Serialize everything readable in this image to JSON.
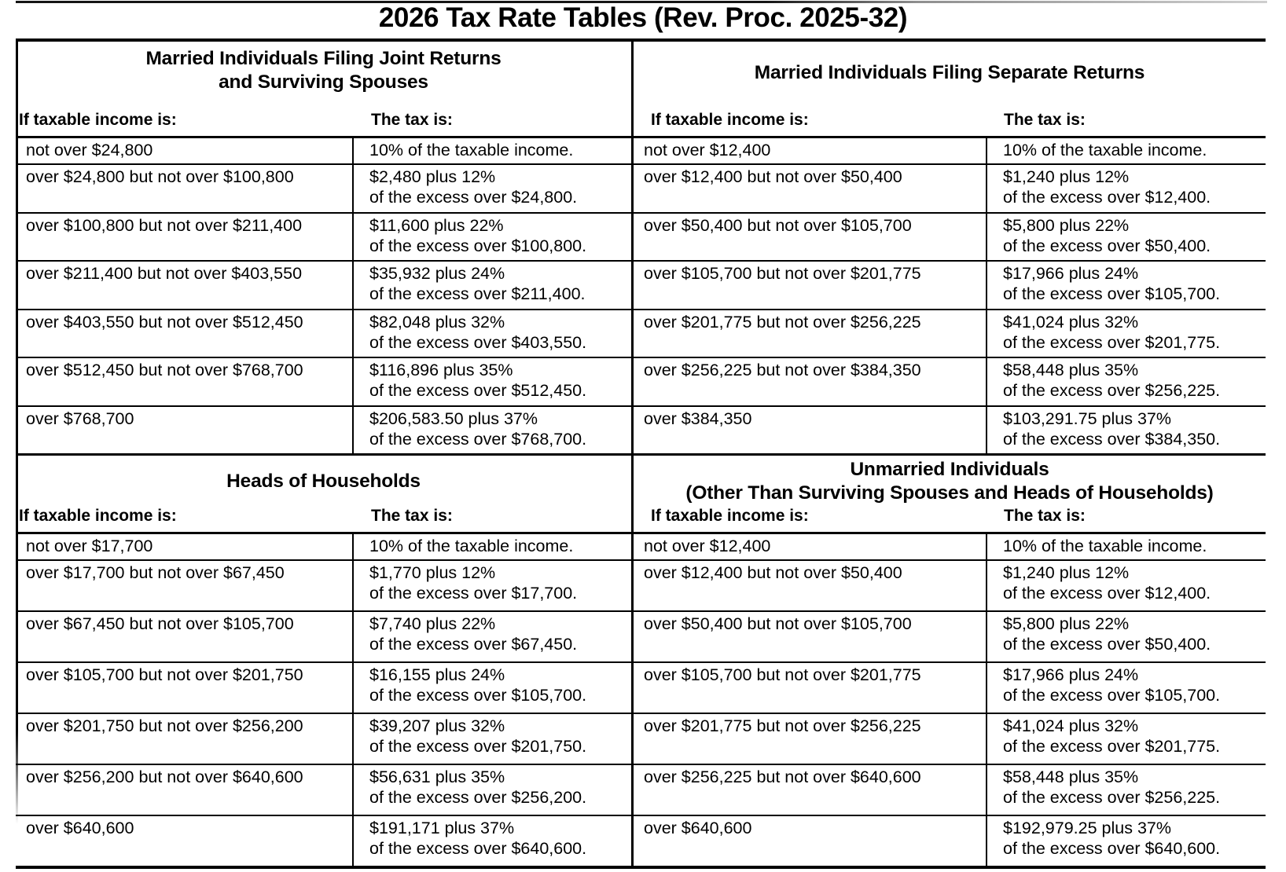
{
  "title": "2026 Tax Rate Tables (Rev. Proc. 2025-32)",
  "column_headers": {
    "income": "If taxable income is:",
    "tax": "The tax is:"
  },
  "tables": [
    {
      "id": "married-filing-jointly",
      "title_line1": "Married Individuals Filing Joint Returns",
      "title_line2": "and Surviving Spouses",
      "rows": [
        {
          "income": "not over $24,800",
          "tax_line1": "10% of the taxable income.",
          "tax_line2": ""
        },
        {
          "income": "over $24,800 but not over $100,800",
          "tax_line1": "$2,480 plus 12%",
          "tax_line2": "of the excess over $24,800."
        },
        {
          "income": "over $100,800 but not over $211,400",
          "tax_line1": "$11,600 plus 22%",
          "tax_line2": "of the excess over $100,800."
        },
        {
          "income": "over $211,400 but not over $403,550",
          "tax_line1": "$35,932 plus 24%",
          "tax_line2": "of the excess over $211,400."
        },
        {
          "income": "over $403,550 but not over $512,450",
          "tax_line1": "$82,048 plus 32%",
          "tax_line2": "of the excess over $403,550."
        },
        {
          "income": "over $512,450 but not over $768,700",
          "tax_line1": "$116,896 plus 35%",
          "tax_line2": "of the excess over $512,450."
        },
        {
          "income": "over $768,700",
          "tax_line1": "$206,583.50 plus 37%",
          "tax_line2": "of the excess over $768,700."
        }
      ]
    },
    {
      "id": "married-filing-separately",
      "title_line1": "Married Individuals Filing Separate Returns",
      "title_line2": "",
      "rows": [
        {
          "income": "not over $12,400",
          "tax_line1": "10% of the taxable income.",
          "tax_line2": ""
        },
        {
          "income": "over $12,400 but not over $50,400",
          "tax_line1": "$1,240 plus 12%",
          "tax_line2": "of the excess over $12,400."
        },
        {
          "income": "over $50,400 but not over $105,700",
          "tax_line1": "$5,800 plus 22%",
          "tax_line2": "of the excess over $50,400."
        },
        {
          "income": "over $105,700 but not over $201,775",
          "tax_line1": "$17,966 plus 24%",
          "tax_line2": "of the excess over $105,700."
        },
        {
          "income": "over $201,775 but not over $256,225",
          "tax_line1": "$41,024 plus 32%",
          "tax_line2": "of the excess over $201,775."
        },
        {
          "income": "over $256,225 but not over $384,350",
          "tax_line1": "$58,448 plus 35%",
          "tax_line2": "of the excess over $256,225."
        },
        {
          "income": "over $384,350",
          "tax_line1": "$103,291.75 plus 37%",
          "tax_line2": "of the excess over $384,350."
        }
      ]
    },
    {
      "id": "heads-of-households",
      "title_line1": "Heads of Households",
      "title_line2": "",
      "rows": [
        {
          "income": "not over $17,700",
          "tax_line1": "10% of the taxable income.",
          "tax_line2": ""
        },
        {
          "income": "over $17,700 but not over $67,450",
          "tax_line1": "$1,770 plus 12%",
          "tax_line2": "of the excess over $17,700."
        },
        {
          "income": "over $67,450 but not over $105,700",
          "tax_line1": "$7,740 plus 22%",
          "tax_line2": "of the excess over $67,450."
        },
        {
          "income": "over $105,700 but not over $201,750",
          "tax_line1": "$16,155 plus 24%",
          "tax_line2": "of the excess over $105,700."
        },
        {
          "income": "over $201,750 but not over $256,200",
          "tax_line1": "$39,207 plus 32%",
          "tax_line2": "of the excess over $201,750."
        },
        {
          "income": "over $256,200 but not over $640,600",
          "tax_line1": "$56,631 plus 35%",
          "tax_line2": "of the excess over $256,200."
        },
        {
          "income": "over $640,600",
          "tax_line1": "$191,171 plus 37%",
          "tax_line2": "of the excess over $640,600."
        }
      ]
    },
    {
      "id": "unmarried-individuals",
      "title_line1": "Unmarried Individuals",
      "title_line2": "(Other Than Surviving Spouses and Heads of Households)",
      "rows": [
        {
          "income": "not over $12,400",
          "tax_line1": "10% of the taxable income.",
          "tax_line2": ""
        },
        {
          "income": "over $12,400 but not over $50,400",
          "tax_line1": "$1,240 plus 12%",
          "tax_line2": "of the excess over $12,400."
        },
        {
          "income": "over $50,400 but not over $105,700",
          "tax_line1": "$5,800 plus 22%",
          "tax_line2": "of the excess over $50,400."
        },
        {
          "income": "over $105,700 but not over $201,775",
          "tax_line1": "$17,966 plus 24%",
          "tax_line2": "of the excess over $105,700."
        },
        {
          "income": "over $201,775 but not over $256,225",
          "tax_line1": "$41,024 plus 32%",
          "tax_line2": "of the excess over $201,775."
        },
        {
          "income": "over $256,225 but not over $640,600",
          "tax_line1": "$58,448 plus 35%",
          "tax_line2": "of the excess over $256,225."
        },
        {
          "income": "over $640,600",
          "tax_line1": "$192,979.25 plus 37%",
          "tax_line2": "of the excess over $640,600."
        }
      ]
    }
  ]
}
